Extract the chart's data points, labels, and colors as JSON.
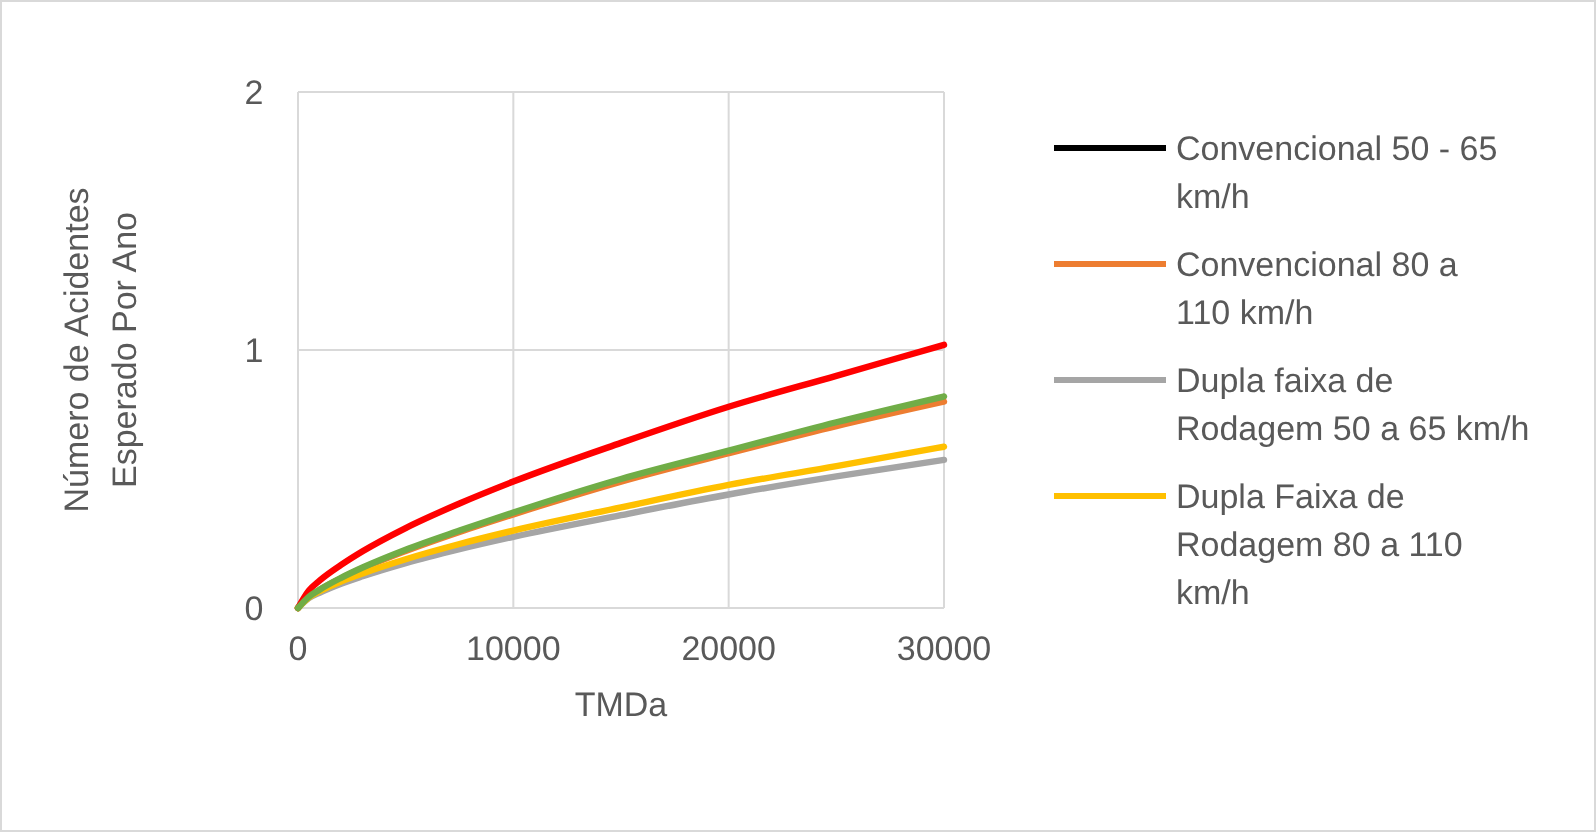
{
  "chart_data": {
    "type": "line",
    "xlabel": "TMDa",
    "ylabel": "Número de Acidentes Esperado Por Ano",
    "x": [
      0,
      500,
      1000,
      2000,
      3000,
      5000,
      7500,
      10000,
      15000,
      20000,
      25000,
      30000
    ],
    "xlim": [
      0,
      30000
    ],
    "xticks": [
      0,
      10000,
      20000,
      30000
    ],
    "ylim": [
      0,
      2
    ],
    "yticks": [
      0,
      1,
      2
    ],
    "grid": true,
    "legend": "right",
    "marker": "none",
    "line_style": "solid",
    "series": [
      {
        "name": "Convencional 50 - 65 km/h",
        "color": "#000000",
        "values": [
          null,
          null,
          null,
          null,
          null,
          null,
          null,
          null,
          null,
          null,
          null,
          null
        ]
      },
      {
        "name": "Convencional 80 a 110 km/h",
        "color": "#ed7d31",
        "values": [
          0,
          0.042,
          0.07,
          0.115,
          0.154,
          0.221,
          0.295,
          0.363,
          0.49,
          0.6,
          0.705,
          0.8
        ]
      },
      {
        "name": "Dupla faixa de Rodagem 50 a 65 km/h",
        "color": "#a5a5a5",
        "values": [
          0,
          0.038,
          0.059,
          0.094,
          0.123,
          0.174,
          0.228,
          0.276,
          0.36,
          0.44,
          0.51,
          0.574
        ]
      },
      {
        "name": "Dupla Faixa de Rodagem 80 a 110 km/h",
        "color": "#ffc000",
        "values": [
          0,
          0.041,
          0.065,
          0.103,
          0.134,
          0.189,
          0.248,
          0.3,
          0.39,
          0.477,
          0.55,
          0.625
        ]
      },
      {
        "color": "#ff0000",
        "values": [
          0,
          0.067,
          0.106,
          0.167,
          0.22,
          0.31,
          0.405,
          0.49,
          0.64,
          0.78,
          0.9,
          1.02
        ]
      },
      {
        "color": "#70ad47",
        "values": [
          0,
          0.043,
          0.071,
          0.117,
          0.157,
          0.226,
          0.3,
          0.37,
          0.5,
          0.61,
          0.72,
          0.82
        ]
      }
    ]
  }
}
